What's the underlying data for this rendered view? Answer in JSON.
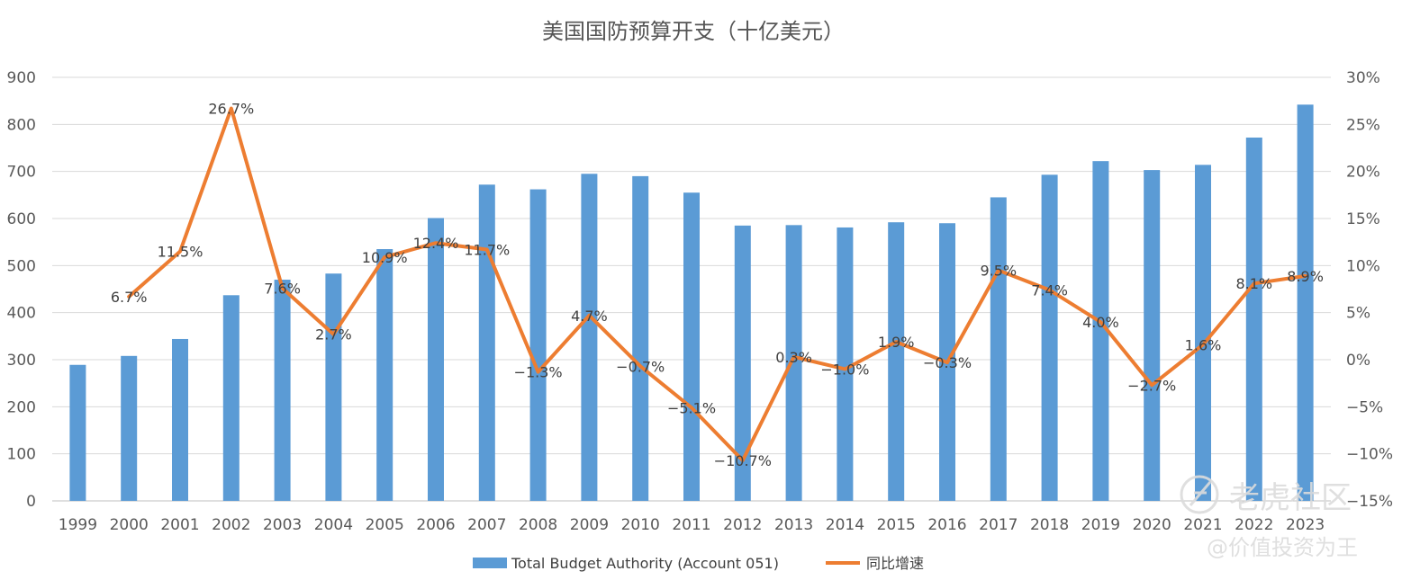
{
  "chart_data": {
    "type": "bar+line",
    "title": "美国国防预算开支（十亿美元）",
    "categories": [
      "1999",
      "2000",
      "2001",
      "2002",
      "2003",
      "2004",
      "2005",
      "2006",
      "2007",
      "2008",
      "2009",
      "2010",
      "2011",
      "2012",
      "2013",
      "2014",
      "2015",
      "2016",
      "2017",
      "2018",
      "2019",
      "2020",
      "2021",
      "2022",
      "2023"
    ],
    "series": [
      {
        "name": "Total Budget Authority (Account 051)",
        "type": "bar",
        "axis": "left",
        "color": "#5B9BD5",
        "values": [
          289,
          308,
          344,
          437,
          470,
          483,
          535,
          601,
          672,
          662,
          695,
          690,
          655,
          585,
          586,
          581,
          592,
          590,
          645,
          693,
          722,
          703,
          714,
          772,
          842
        ]
      },
      {
        "name": "同比增速",
        "type": "line",
        "axis": "right",
        "color": "#ED7D31",
        "values": [
          null,
          6.7,
          11.5,
          26.7,
          7.6,
          2.7,
          10.9,
          12.4,
          11.7,
          -1.3,
          4.7,
          -0.7,
          -5.1,
          -10.7,
          0.3,
          -1.0,
          1.9,
          -0.3,
          9.5,
          7.4,
          4.0,
          -2.7,
          1.6,
          8.1,
          8.9
        ],
        "labels": [
          "",
          "6.7%",
          "11.5%",
          "26.7%",
          "7.6%",
          "2.7%",
          "10.9%",
          "12.4%",
          "11.7%",
          "−1.3%",
          "4.7%",
          "−0.7%",
          "−5.1%",
          "−10.7%",
          "0.3%",
          "−1.0%",
          "1.9%",
          "−0.3%",
          "9.5%",
          "7.4%",
          "4.0%",
          "−2.7%",
          "1.6%",
          "8.1%",
          "8.9%"
        ]
      }
    ],
    "y_left": {
      "min": 0,
      "max": 900,
      "step": 100,
      "ticks": [
        "0",
        "100",
        "200",
        "300",
        "400",
        "500",
        "600",
        "700",
        "800",
        "900"
      ]
    },
    "y_right": {
      "min": -15,
      "max": 30,
      "step": 5,
      "ticks": [
        "−15%",
        "−10%",
        "−5%",
        "0%",
        "5%",
        "10%",
        "15%",
        "20%",
        "25%",
        "30%"
      ]
    },
    "grid": true,
    "legend_position": "bottom-center"
  },
  "watermark": {
    "line1": "老虎社区",
    "line2": "@价值投资为王"
  }
}
